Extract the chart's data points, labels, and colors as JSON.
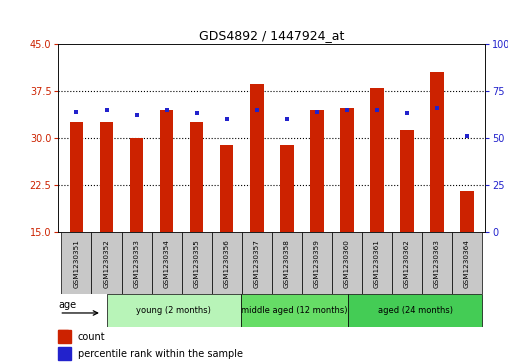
{
  "title": "GDS4892 / 1447924_at",
  "samples": [
    "GSM1230351",
    "GSM1230352",
    "GSM1230353",
    "GSM1230354",
    "GSM1230355",
    "GSM1230356",
    "GSM1230357",
    "GSM1230358",
    "GSM1230359",
    "GSM1230360",
    "GSM1230361",
    "GSM1230362",
    "GSM1230363",
    "GSM1230364"
  ],
  "count_values": [
    32.5,
    32.5,
    30.0,
    34.5,
    32.5,
    28.8,
    38.5,
    28.9,
    34.5,
    34.8,
    38.0,
    31.2,
    40.5,
    21.5
  ],
  "percentile_values": [
    64,
    65,
    62,
    65,
    63,
    60,
    65,
    60,
    64,
    65,
    65,
    63,
    66,
    51
  ],
  "ylim_left": [
    15,
    45
  ],
  "ylim_right": [
    0,
    100
  ],
  "yticks_left": [
    15,
    22.5,
    30,
    37.5,
    45
  ],
  "yticks_right": [
    0,
    25,
    50,
    75,
    100
  ],
  "bar_color": "#cc2200",
  "percentile_color": "#2222cc",
  "bar_width": 0.45,
  "groups": [
    {
      "label": "young (2 months)",
      "start": 0,
      "end": 5
    },
    {
      "label": "middle aged (12 months)",
      "start": 5,
      "end": 9
    },
    {
      "label": "aged (24 months)",
      "start": 9,
      "end": 14
    }
  ],
  "group_colors": [
    "#b8f4b8",
    "#66dd66",
    "#44cc55"
  ],
  "age_label": "age",
  "legend_count_label": "count",
  "legend_percentile_label": "percentile rank within the sample",
  "tick_label_color_left": "#cc2200",
  "tick_label_color_right": "#2222cc",
  "xlabel_area_color": "#c8c8c8",
  "grid_linestyle": "dotted",
  "grid_linewidth": 0.8
}
